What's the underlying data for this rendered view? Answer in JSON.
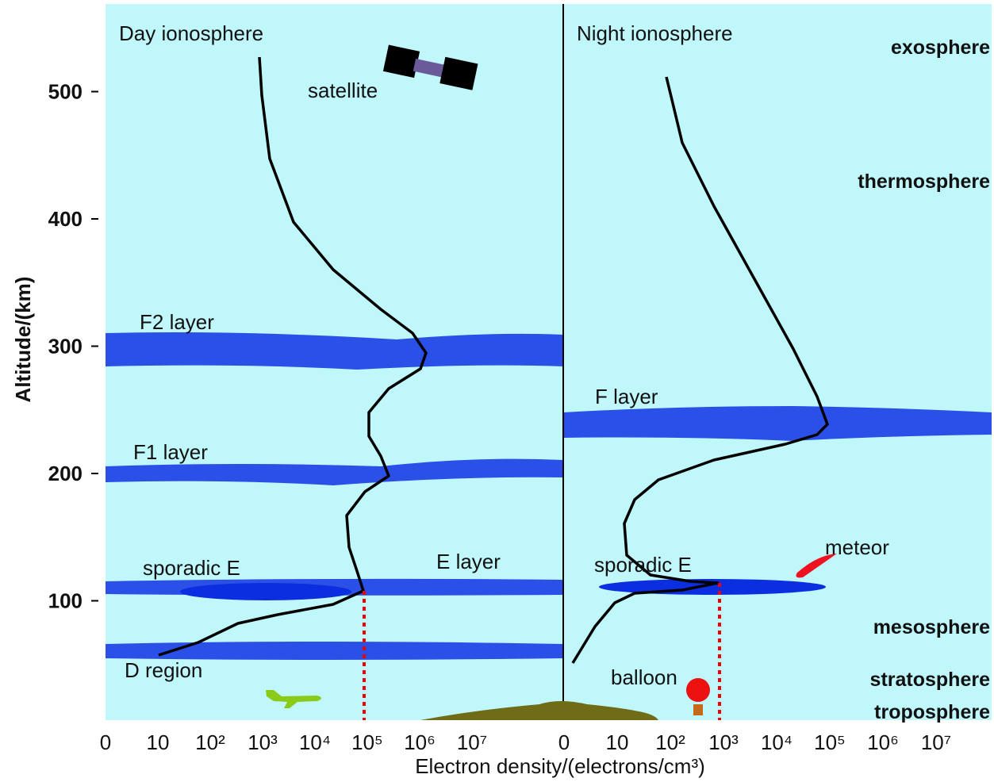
{
  "title_day": "Day  ionosphere",
  "title_night": "Night  ionosphere",
  "y_axis_label": "Altitude/(km)",
  "x_axis_label": "Electron density/(electrons/cm³)",
  "yticks": [
    500,
    400,
    300,
    200,
    100
  ],
  "xticks_day": [
    "0",
    "10",
    "10²",
    "10³",
    "10⁴",
    "10⁵",
    "10⁶",
    "10⁷"
  ],
  "xticks_night": [
    "0",
    "10",
    "10²",
    "10³",
    "10⁴",
    "10⁵",
    "10⁶",
    "10⁷"
  ],
  "atmosphere": [
    "exosphere",
    "thermosphere",
    "mesosphere",
    "stratosphere",
    "troposphere"
  ],
  "layers_day": [
    "F2 layer",
    "F1 layer",
    "sporadic E",
    "E layer",
    "D region"
  ],
  "layers_night": [
    "F layer",
    "sporadic E"
  ],
  "objects": [
    "satellite",
    "meteor",
    "balloon"
  ]
}
